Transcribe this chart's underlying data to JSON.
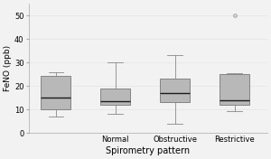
{
  "title": "",
  "xlabel": "Spirometry pattern",
  "ylabel": "FeNO (ppb)",
  "categories": [
    "",
    "Normal",
    "Obstructive",
    "Restrictive"
  ],
  "ylim": [
    0,
    55
  ],
  "yticks": [
    0,
    10,
    20,
    30,
    40,
    50
  ],
  "boxes": [
    {
      "label": "",
      "whislo": 7,
      "q1": 10,
      "med": 15,
      "q3": 24.5,
      "whishi": 26,
      "fliers": []
    },
    {
      "label": "Normal",
      "whislo": 8,
      "q1": 12,
      "med": 13.5,
      "q3": 19,
      "whishi": 30,
      "fliers": []
    },
    {
      "label": "Obstructive",
      "whislo": 4,
      "q1": 13,
      "med": 17,
      "q3": 23,
      "whishi": 33,
      "fliers": []
    },
    {
      "label": "Restrictive",
      "whislo": 9.5,
      "q1": 12,
      "med": 14,
      "q3": 25,
      "whishi": 25.5,
      "fliers": [
        50
      ]
    }
  ],
  "box_color": "#b8b8b8",
  "median_color": "#1a1a1a",
  "whisker_color": "#888888",
  "flier_color": "#888888",
  "background_color": "#f2f2f2",
  "grid_color": "#e8e8e8",
  "label_fontsize": 6.5,
  "tick_fontsize": 6,
  "xlabel_fontsize": 7
}
